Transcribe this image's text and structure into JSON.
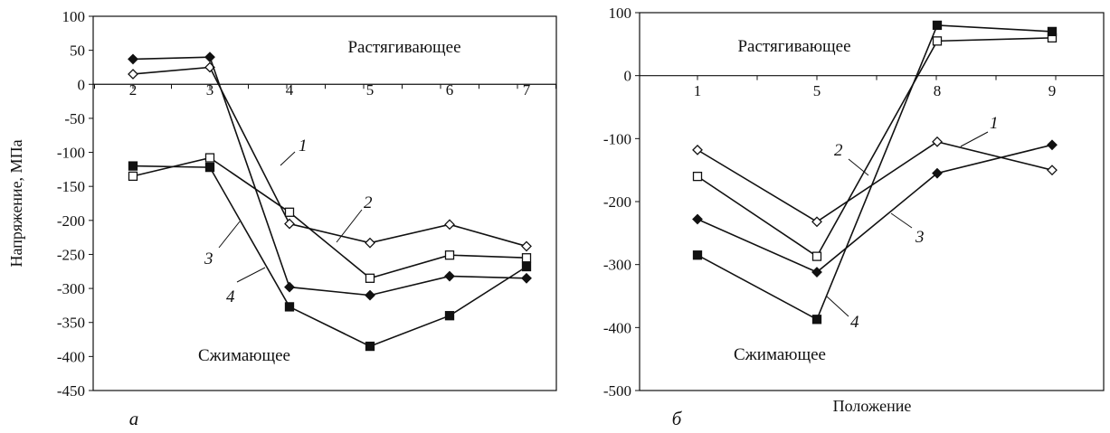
{
  "chart_data": [
    {
      "type": "line",
      "panel_label": "а",
      "ylabel": "Напряжение, МПа",
      "xlabel": "",
      "categories": [
        "2",
        "3",
        "4",
        "5",
        "6",
        "7"
      ],
      "ylim": [
        -450,
        100
      ],
      "yticks": [
        100,
        50,
        0,
        -50,
        -100,
        -150,
        -200,
        -250,
        -300,
        -350,
        -400,
        -450
      ],
      "annotations": [
        {
          "id": "tension",
          "text": "Растягивающее"
        },
        {
          "id": "compression",
          "text": "Сжимающее"
        }
      ],
      "series": [
        {
          "name": "1",
          "marker": "open-diamond",
          "values": [
            15,
            25,
            -205,
            -233,
            -206,
            -238
          ]
        },
        {
          "name": "2",
          "marker": "open-square",
          "values": [
            -135,
            -108,
            -188,
            -285,
            -251,
            -255
          ]
        },
        {
          "name": "3",
          "marker": "filled-diamond",
          "values": [
            37,
            40,
            -298,
            -310,
            -282,
            -285
          ]
        },
        {
          "name": "4",
          "marker": "filled-square",
          "values": [
            -120,
            -122,
            -327,
            -385,
            -340,
            -268
          ]
        }
      ]
    },
    {
      "type": "line",
      "panel_label": "б",
      "ylabel": "",
      "xlabel": "Положение",
      "categories": [
        "1",
        "5",
        "8",
        "9"
      ],
      "ylim": [
        -500,
        100
      ],
      "yticks": [
        100,
        0,
        -100,
        -200,
        -300,
        -400,
        -500
      ],
      "annotations": [
        {
          "id": "tension",
          "text": "Растягивающее"
        },
        {
          "id": "compression",
          "text": "Сжимающее"
        }
      ],
      "series": [
        {
          "name": "1",
          "marker": "open-diamond",
          "values": [
            -118,
            -232,
            -105,
            -150
          ]
        },
        {
          "name": "2",
          "marker": "open-square",
          "values": [
            -160,
            -287,
            55,
            60
          ]
        },
        {
          "name": "3",
          "marker": "filled-diamond",
          "values": [
            -228,
            -312,
            -155,
            -110
          ]
        },
        {
          "name": "4",
          "marker": "filled-square",
          "values": [
            -285,
            -387,
            80,
            70
          ]
        }
      ]
    }
  ]
}
